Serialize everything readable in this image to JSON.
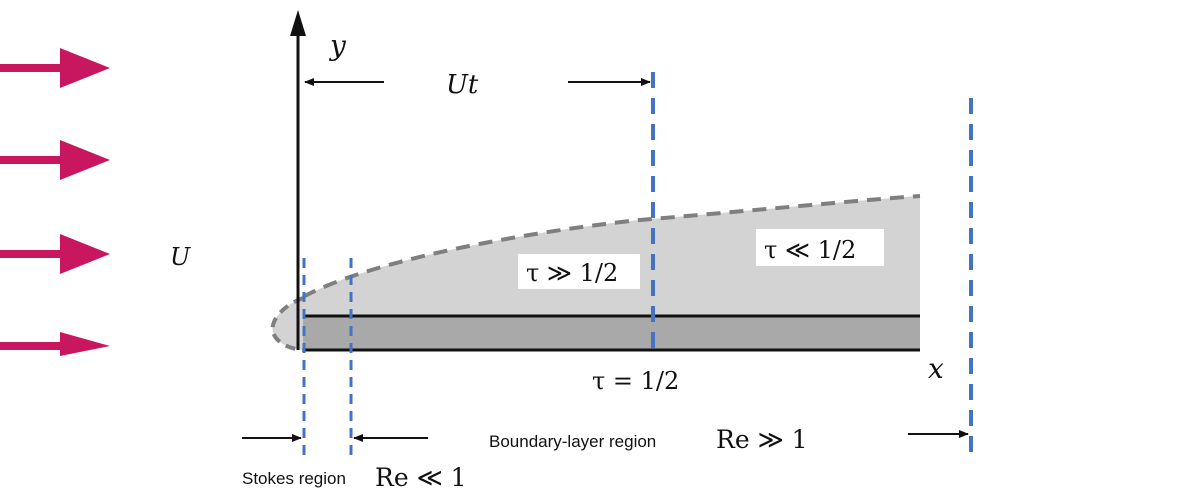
{
  "labels": {
    "y_axis": "y",
    "x_axis": "x",
    "freestream": "U",
    "distance": "Ut",
    "tau_large": "τ ≫ 1/2",
    "tau_small": "τ ≪ 1/2",
    "tau_half": "τ = 1/2",
    "boundary_region": "Boundary-layer region",
    "boundary_re": "Re ≫ 1",
    "stokes_region": "Stokes region",
    "stokes_re": "Re ≪ 1"
  },
  "colors": {
    "arrow_magenta": "#c8175f",
    "guide_blue": "#4472c4",
    "layer_light": "#d3d3d3",
    "plate_dark": "#a9a9a9",
    "edge_gray": "#7f7f7f"
  }
}
